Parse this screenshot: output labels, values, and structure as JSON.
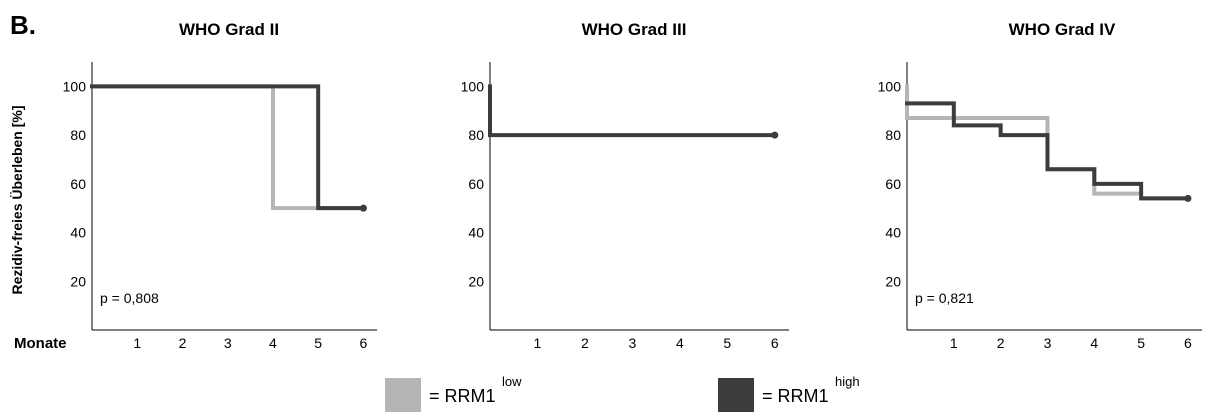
{
  "panel_letter": "B.",
  "ylabel": "Rezidiv-freies Überleben [%]",
  "xlabel": "Monate",
  "colors": {
    "low": "#b5b5b5",
    "high": "#3c3c3c",
    "axis": "#000000"
  },
  "legend": [
    {
      "key": "low",
      "label": "= RRM1",
      "sup": "low"
    },
    {
      "key": "high",
      "label": "= RRM1",
      "sup": "high"
    }
  ],
  "chart_data": [
    {
      "type": "line",
      "title": "WHO Grad II",
      "p_value": "p = 0,808",
      "xlim": [
        0,
        6.3
      ],
      "ylim": [
        0,
        110
      ],
      "xticks": [
        "1",
        "2",
        "3",
        "4",
        "5",
        "6"
      ],
      "yticks": [
        "20",
        "40",
        "60",
        "80",
        "100"
      ],
      "series": [
        {
          "key": "low",
          "points": [
            [
              0,
              100
            ],
            [
              4,
              100
            ],
            [
              4,
              50
            ],
            [
              6,
              50
            ]
          ]
        },
        {
          "key": "high",
          "points": [
            [
              0,
              100
            ],
            [
              5,
              100
            ],
            [
              5,
              50
            ],
            [
              6,
              50
            ]
          ]
        }
      ]
    },
    {
      "type": "line",
      "title": "WHO Grad III",
      "p_value": "",
      "xlim": [
        0,
        6.3
      ],
      "ylim": [
        0,
        110
      ],
      "xticks": [
        "1",
        "2",
        "3",
        "4",
        "5",
        "6"
      ],
      "yticks": [
        "20",
        "40",
        "60",
        "80",
        "100"
      ],
      "series": [
        {
          "key": "high",
          "points": [
            [
              0,
              100
            ],
            [
              0,
              80
            ],
            [
              6,
              80
            ]
          ]
        }
      ]
    },
    {
      "type": "line",
      "title": "WHO Grad IV",
      "p_value": "p = 0,821",
      "xlim": [
        0,
        6.3
      ],
      "ylim": [
        0,
        110
      ],
      "xticks": [
        "1",
        "2",
        "3",
        "4",
        "5",
        "6"
      ],
      "yticks": [
        "20",
        "40",
        "60",
        "80",
        "100"
      ],
      "series": [
        {
          "key": "low",
          "points": [
            [
              0,
              100
            ],
            [
              0,
              87
            ],
            [
              3,
              87
            ],
            [
              3,
              66
            ],
            [
              4,
              66
            ],
            [
              4,
              56
            ],
            [
              5,
              56
            ],
            [
              5,
              54
            ],
            [
              6,
              54
            ]
          ]
        },
        {
          "key": "high",
          "points": [
            [
              0,
              93
            ],
            [
              1,
              93
            ],
            [
              1,
              84
            ],
            [
              2,
              84
            ],
            [
              2,
              80
            ],
            [
              3,
              80
            ],
            [
              3,
              66
            ],
            [
              4,
              66
            ],
            [
              4,
              60
            ],
            [
              5,
              60
            ],
            [
              5,
              54
            ],
            [
              6,
              54
            ]
          ]
        }
      ]
    }
  ]
}
